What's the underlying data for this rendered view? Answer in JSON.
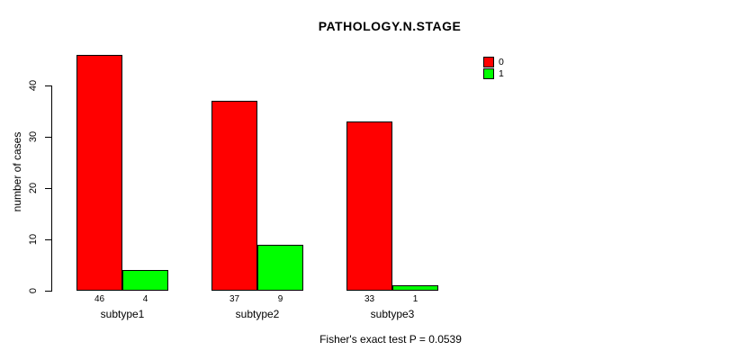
{
  "chart_data": {
    "type": "bar",
    "title": "PATHOLOGY.N.STAGE",
    "ylabel": "number of cases",
    "xlabel": "",
    "categories": [
      "subtype1",
      "subtype2",
      "subtype3"
    ],
    "series": [
      {
        "name": "0",
        "color": "#ff0000",
        "values": [
          46,
          37,
          33
        ]
      },
      {
        "name": "1",
        "color": "#00ff00",
        "values": [
          4,
          9,
          1
        ]
      }
    ],
    "yticks": [
      0,
      10,
      20,
      30,
      40
    ],
    "ylim": [
      0,
      46
    ],
    "grid": false,
    "bar_value_labels_shown": true,
    "legend_position": "top-right",
    "annotation": "Fisher's exact test P = 0.0539"
  },
  "colors": {
    "background": "#ffffff",
    "axis": "#000000",
    "text": "#000000",
    "bar_border": "#000000",
    "series_0": "#ff0000",
    "series_1": "#00ff00"
  }
}
